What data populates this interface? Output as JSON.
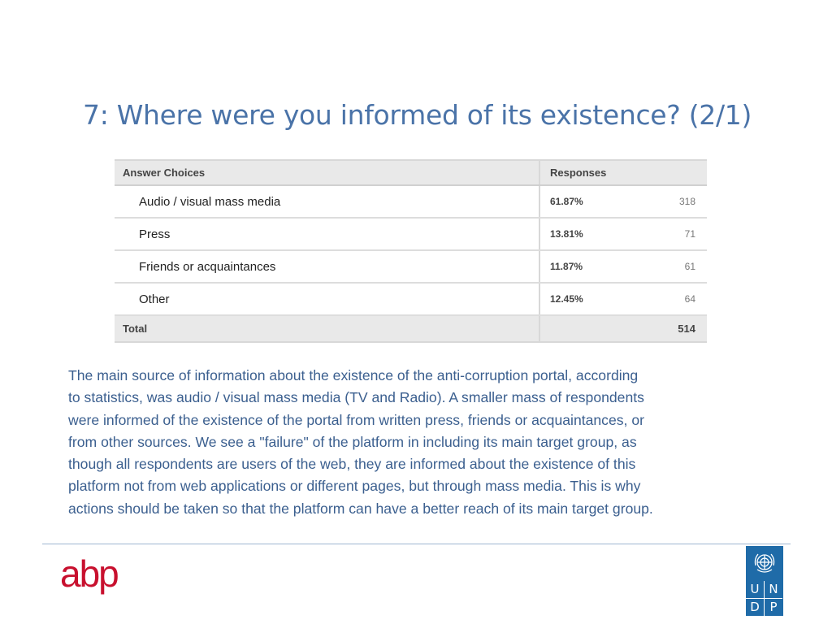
{
  "slide": {
    "title": "7: Where were you informed of its existence? (2/1)"
  },
  "table": {
    "headers": {
      "choices": "Answer Choices",
      "responses": "Responses"
    },
    "rows": [
      {
        "choice": "Audio / visual mass media",
        "percent": "61.87%",
        "count": "318"
      },
      {
        "choice": "Press",
        "percent": "13.81%",
        "count": "71"
      },
      {
        "choice": "Friends or acquaintances",
        "percent": "11.87%",
        "count": "61"
      },
      {
        "choice": "Other",
        "percent": "12.45%",
        "count": "64"
      }
    ],
    "total": {
      "label": "Total",
      "value": "514"
    }
  },
  "body": {
    "lines": [
      "The main source of information about the existence of the anti-corruption portal, according",
      "to statistics, was audio / visual mass media (TV and Radio). A smaller mass of respondents",
      "were informed of the existence of the portal from written press, friends or acquaintances, or",
      "from other sources. We see a \"failure\" of the platform in including its main target group, as",
      "though all respondents are users of the web, they are informed about the existence of this",
      "platform not from web applications or different pages, but through mass media. This is why",
      "actions should be taken so that the platform can have a better reach of its main target group."
    ]
  },
  "footer": {
    "abp_logo_text": "abp",
    "undp_letters": [
      "U",
      "N",
      "D",
      "P"
    ]
  },
  "colors": {
    "title": "#4a73a8",
    "body_text": "#3b5f8f",
    "abp_red": "#c8102e",
    "undp_blue": "#1f6ba8"
  },
  "icons": {
    "undp_emblem": "un-emblem-icon"
  }
}
